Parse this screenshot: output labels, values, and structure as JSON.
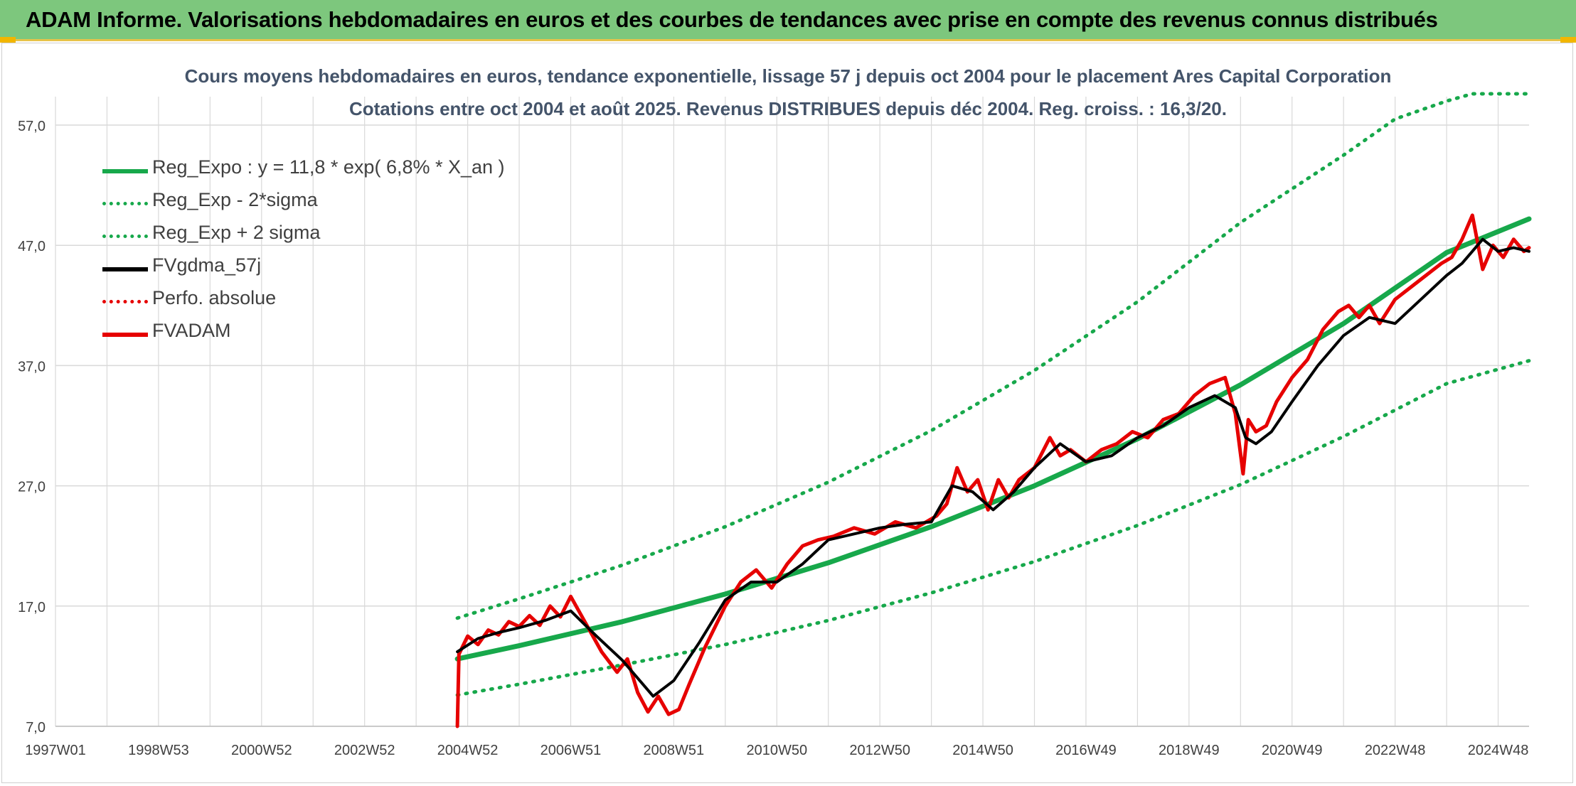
{
  "banner": {
    "title": "ADAM Informe. Valorisations hebdomadaires en euros et des courbes de tendances avec prise en compte des revenus connus distribués"
  },
  "colors": {
    "banner_bg": "#7dc77d",
    "trend_green": "#17a84b",
    "price_red": "#e60000",
    "smooth_black": "#000000",
    "grid": "#d9d9d9",
    "title_text": "#44546a"
  },
  "chart_data": {
    "type": "line",
    "title": "Cours moyens hebdomadaires en euros, tendance exponentielle, lissage 57 j depuis oct 2004 pour le placement Ares Capital Corporation",
    "subtitle": "Cotations entre oct 2004 et août 2025. Revenus DISTRIBUES depuis déc 2004. Reg. croiss. : 16,3/20.",
    "xlabel": "",
    "ylabel": "",
    "ylim": [
      7,
      57
    ],
    "xlim": [
      1997.0,
      2025.6
    ],
    "grid": true,
    "legend_position": "top-left",
    "y_ticks": [
      "57,0",
      "47,0",
      "37,0",
      "27,0",
      "17,0",
      "7,0"
    ],
    "x_ticks": [
      "1997W01",
      "1998W53",
      "2000W52",
      "2002W52",
      "2004W52",
      "2006W51",
      "2008W51",
      "2010W50",
      "2012W50",
      "2014W50",
      "2016W49",
      "2018W49",
      "2020W49",
      "2022W48",
      "2024W48"
    ],
    "legend": [
      {
        "label": "Reg_Expo : y = 11,8 * exp( 6,8% *  X_an )",
        "color": "#17a84b",
        "style": "solid"
      },
      {
        "label": "Reg_Exp - 2*sigma",
        "color": "#17a84b",
        "style": "dotted"
      },
      {
        "label": "Reg_Exp + 2 sigma",
        "color": "#17a84b",
        "style": "dotted"
      },
      {
        "label": "FVgdma_57j",
        "color": "#000000",
        "style": "solid"
      },
      {
        "label": "Perfo. absolue",
        "color": "#e60000",
        "style": "dotted"
      },
      {
        "label": "FVADAM",
        "color": "#e60000",
        "style": "solid"
      }
    ],
    "series": [
      {
        "name": "Reg_Expo : y = 11,8 * exp( 6,8% *  X_an )",
        "x": [
          2004.8,
          2006.0,
          2008.0,
          2010.0,
          2012.0,
          2014.0,
          2016.0,
          2018.0,
          2020.0,
          2022.0,
          2024.0,
          2025.6
        ],
        "y": [
          12.6,
          13.7,
          15.7,
          18.0,
          20.6,
          23.6,
          27.0,
          30.9,
          35.4,
          40.5,
          46.4,
          49.2
        ]
      },
      {
        "name": "Reg_Exp - 2*sigma",
        "x": [
          2004.8,
          2006.0,
          2008.0,
          2010.0,
          2012.0,
          2014.0,
          2016.0,
          2018.0,
          2020.0,
          2022.0,
          2024.0,
          2025.6
        ],
        "y": [
          9.6,
          10.5,
          12.1,
          13.8,
          15.8,
          18.1,
          20.7,
          23.7,
          27.1,
          31.1,
          35.5,
          37.4
        ]
      },
      {
        "name": "Reg_Exp + 2 sigma",
        "x": [
          2004.8,
          2006.0,
          2008.0,
          2010.0,
          2012.0,
          2014.0,
          2016.0,
          2018.0,
          2020.0,
          2022.0,
          2023.0,
          2024.0,
          2024.5,
          2025.6
        ],
        "y": [
          16.0,
          17.6,
          20.4,
          23.6,
          27.3,
          31.6,
          36.6,
          42.3,
          48.9,
          54.5,
          57.5,
          59.0,
          60.0,
          60.0
        ]
      },
      {
        "name": "FVgdma_57j",
        "x": [
          2004.8,
          2005.2,
          2005.6,
          2006.0,
          2006.5,
          2007.0,
          2007.5,
          2008.0,
          2008.3,
          2008.6,
          2009.0,
          2009.5,
          2010.0,
          2010.5,
          2011.0,
          2011.5,
          2012.0,
          2012.5,
          2013.0,
          2013.5,
          2014.0,
          2014.4,
          2014.8,
          2015.2,
          2015.6,
          2016.0,
          2016.5,
          2017.0,
          2017.5,
          2018.0,
          2018.5,
          2019.0,
          2019.5,
          2019.9,
          2020.1,
          2020.3,
          2020.6,
          2021.0,
          2021.5,
          2022.0,
          2022.5,
          2023.0,
          2023.5,
          2024.0,
          2024.3,
          2024.7,
          2025.0,
          2025.3,
          2025.6
        ],
        "y": [
          13.2,
          14.3,
          14.8,
          15.2,
          15.8,
          16.6,
          14.5,
          12.5,
          11.0,
          9.5,
          10.8,
          14.0,
          17.5,
          19.0,
          19.0,
          20.5,
          22.5,
          23.0,
          23.5,
          23.8,
          24.0,
          27.0,
          26.5,
          25.0,
          26.5,
          28.5,
          30.5,
          29.0,
          29.5,
          31.0,
          32.0,
          33.5,
          34.5,
          33.5,
          31.0,
          30.5,
          31.5,
          34.0,
          37.0,
          39.5,
          41.0,
          40.5,
          42.5,
          44.5,
          45.5,
          47.5,
          46.5,
          46.8,
          46.5
        ]
      },
      {
        "name": "FVADAM",
        "x": [
          2004.8,
          2004.83,
          2005.0,
          2005.2,
          2005.4,
          2005.6,
          2005.8,
          2006.0,
          2006.2,
          2006.4,
          2006.6,
          2006.8,
          2007.0,
          2007.3,
          2007.6,
          2007.9,
          2008.1,
          2008.3,
          2008.5,
          2008.7,
          2008.9,
          2009.1,
          2009.3,
          2009.6,
          2010.0,
          2010.3,
          2010.6,
          2010.9,
          2011.2,
          2011.5,
          2011.8,
          2012.1,
          2012.5,
          2012.9,
          2013.3,
          2013.7,
          2014.1,
          2014.3,
          2014.5,
          2014.7,
          2014.9,
          2015.1,
          2015.3,
          2015.5,
          2015.7,
          2016.0,
          2016.3,
          2016.5,
          2016.7,
          2017.0,
          2017.3,
          2017.6,
          2017.9,
          2018.2,
          2018.5,
          2018.8,
          2019.1,
          2019.4,
          2019.7,
          2019.9,
          2020.05,
          2020.15,
          2020.3,
          2020.5,
          2020.7,
          2021.0,
          2021.3,
          2021.6,
          2021.9,
          2022.1,
          2022.3,
          2022.5,
          2022.7,
          2023.0,
          2023.3,
          2023.6,
          2023.9,
          2024.1,
          2024.3,
          2024.5,
          2024.7,
          2024.9,
          2025.1,
          2025.3,
          2025.5,
          2025.6
        ],
        "y": [
          7.0,
          13.0,
          14.5,
          13.8,
          15.0,
          14.6,
          15.7,
          15.3,
          16.2,
          15.4,
          17.0,
          16.1,
          17.8,
          15.5,
          13.2,
          11.5,
          12.6,
          9.8,
          8.2,
          9.5,
          8.0,
          8.4,
          10.5,
          13.5,
          17.0,
          19.0,
          20.0,
          18.5,
          20.5,
          22.0,
          22.5,
          22.8,
          23.5,
          23.0,
          24.0,
          23.5,
          24.5,
          25.5,
          28.5,
          26.5,
          27.5,
          25.0,
          27.5,
          26.0,
          27.5,
          28.5,
          31.0,
          29.5,
          30.0,
          29.0,
          30.0,
          30.5,
          31.5,
          31.0,
          32.5,
          33.0,
          34.5,
          35.5,
          36.0,
          33.0,
          28.0,
          32.5,
          31.5,
          32.0,
          34.0,
          36.0,
          37.5,
          40.0,
          41.5,
          42.0,
          41.0,
          42.0,
          40.5,
          42.5,
          43.5,
          44.5,
          45.5,
          46.0,
          47.5,
          49.5,
          45.0,
          47.0,
          46.0,
          47.5,
          46.5,
          46.8
        ]
      }
    ]
  }
}
